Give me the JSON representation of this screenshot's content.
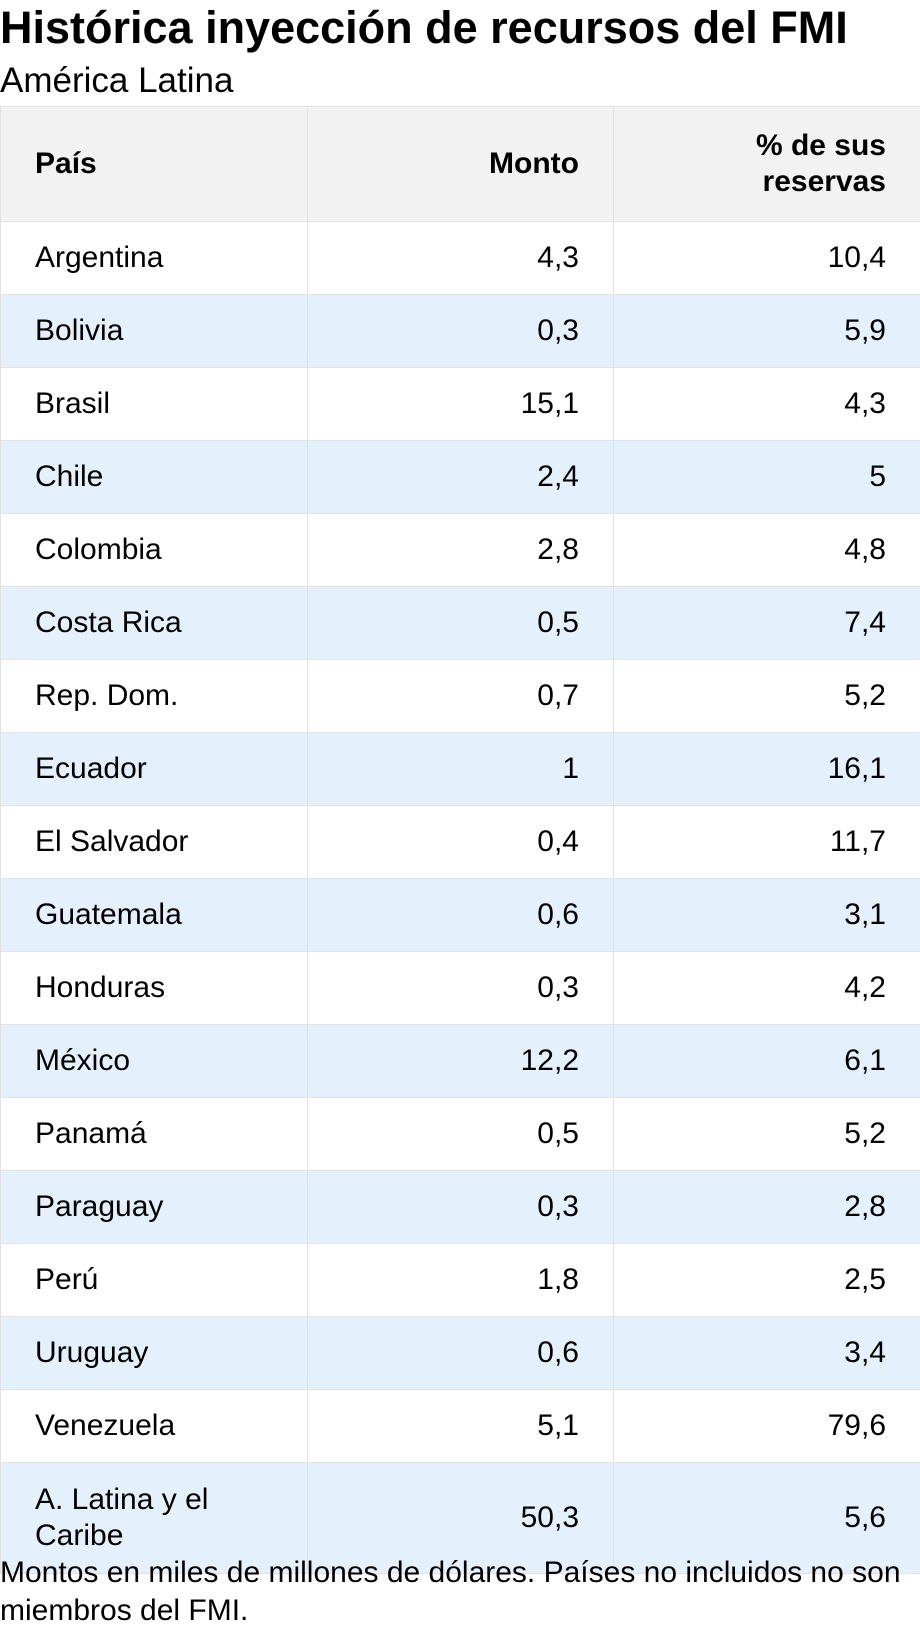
{
  "chart_data": {
    "type": "table",
    "title": "Histórica inyección de recursos del FMI",
    "subtitle": "América Latina",
    "columns": [
      "País",
      "Monto",
      "% de sus reservas"
    ],
    "rows": [
      {
        "pais": "Argentina",
        "monto": "4,3",
        "reservas": "10,4"
      },
      {
        "pais": "Bolivia",
        "monto": "0,3",
        "reservas": "5,9"
      },
      {
        "pais": "Brasil",
        "monto": "15,1",
        "reservas": "4,3"
      },
      {
        "pais": "Chile",
        "monto": "2,4",
        "reservas": "5"
      },
      {
        "pais": "Colombia",
        "monto": "2,8",
        "reservas": "4,8"
      },
      {
        "pais": "Costa Rica",
        "monto": "0,5",
        "reservas": "7,4"
      },
      {
        "pais": "Rep. Dom.",
        "monto": "0,7",
        "reservas": "5,2"
      },
      {
        "pais": "Ecuador",
        "monto": "1",
        "reservas": "16,1"
      },
      {
        "pais": "El Salvador",
        "monto": "0,4",
        "reservas": "11,7"
      },
      {
        "pais": "Guatemala",
        "monto": "0,6",
        "reservas": "3,1"
      },
      {
        "pais": "Honduras",
        "monto": "0,3",
        "reservas": "4,2"
      },
      {
        "pais": "México",
        "monto": "12,2",
        "reservas": "6,1"
      },
      {
        "pais": "Panamá",
        "monto": "0,5",
        "reservas": "5,2"
      },
      {
        "pais": "Paraguay",
        "monto": "0,3",
        "reservas": "2,8"
      },
      {
        "pais": "Perú",
        "monto": "1,8",
        "reservas": "2,5"
      },
      {
        "pais": "Uruguay",
        "monto": "0,6",
        "reservas": "3,4"
      },
      {
        "pais": "Venezuela",
        "monto": "5,1",
        "reservas": "79,6"
      },
      {
        "pais": "A. Latina y el Caribe",
        "monto": "50,3",
        "reservas": "5,6"
      }
    ],
    "note": "Montos en miles de millones de dólares. Países no incluidos no son miembros del FMI."
  },
  "colors": {
    "header_background": "#f2f2f2",
    "alternate_row": "#e4f1fc",
    "row": "#ffffff",
    "border": "#e2e2e2",
    "text": "#000000"
  }
}
